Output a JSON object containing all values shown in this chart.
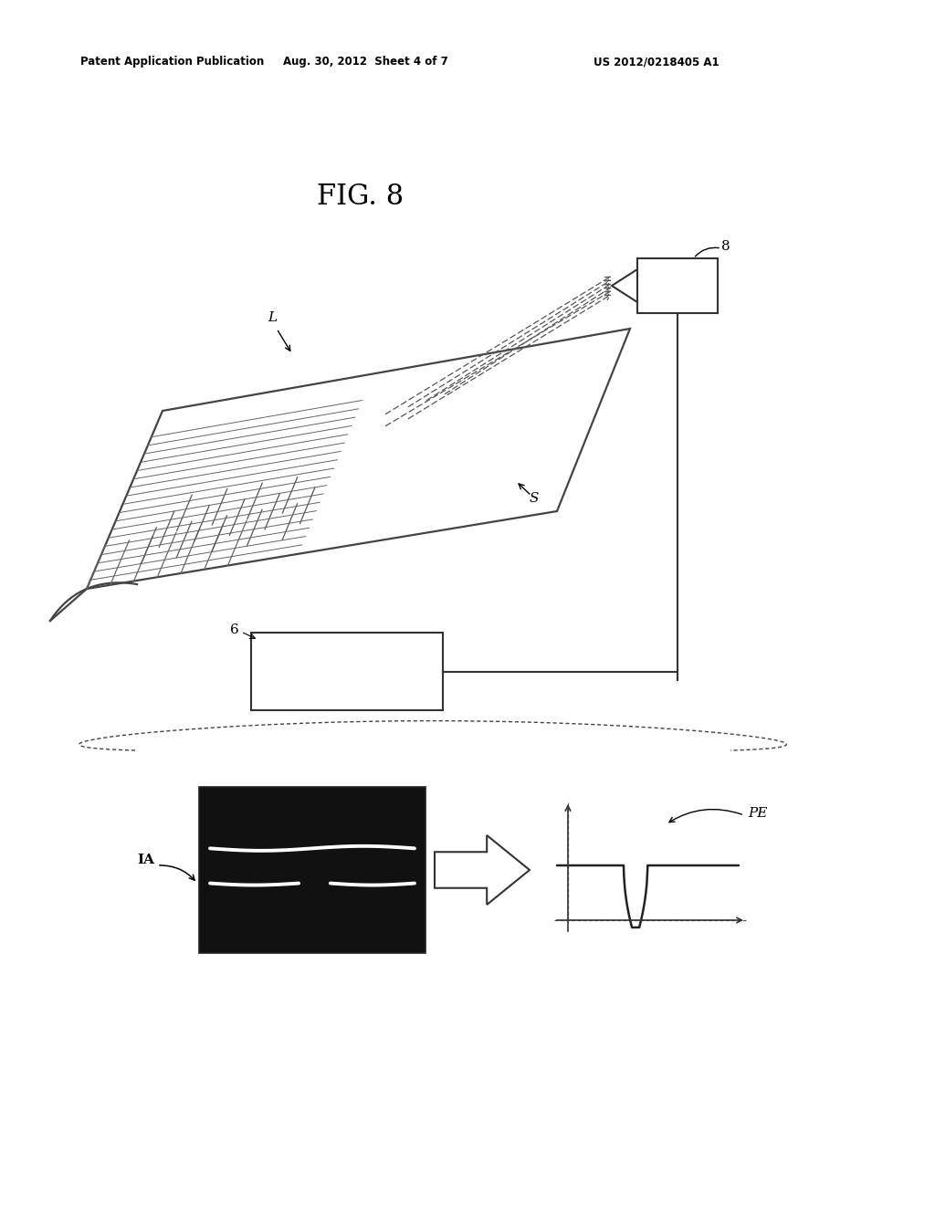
{
  "title": "FIG. 8",
  "header_left": "Patent Application Publication",
  "header_center": "Aug. 30, 2012  Sheet 4 of 7",
  "header_right": "US 2012/0218405 A1",
  "background_color": "#ffffff",
  "text_color": "#000000",
  "label_8": "8",
  "label_L": "L",
  "label_S": "S",
  "label_6": "6",
  "label_IA": "IA",
  "label_PE": "PE"
}
